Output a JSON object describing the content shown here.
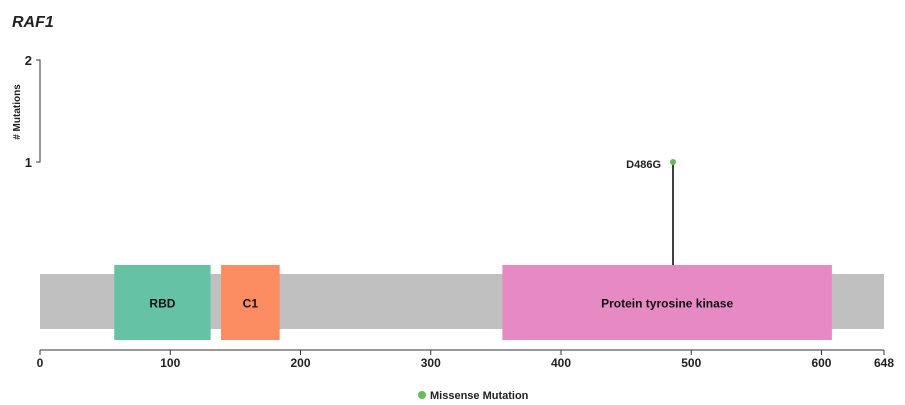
{
  "chart_data": {
    "type": "lollipop",
    "title": "RAF1",
    "ylabel": "# Mutations",
    "y_ticks": [
      1,
      2
    ],
    "ylim": [
      0,
      2
    ],
    "x_range": [
      0,
      648
    ],
    "x_ticks": [
      0,
      100,
      200,
      300,
      400,
      500,
      600,
      648
    ],
    "protein_length": 648,
    "domains": [
      {
        "name": "RBD",
        "start": 57,
        "end": 131,
        "color": "#66c2a5"
      },
      {
        "name": "C1",
        "start": 139,
        "end": 184,
        "color": "#fc8d62"
      },
      {
        "name": "Protein tyrosine kinase",
        "start": 355,
        "end": 608,
        "color": "#e78ac3"
      }
    ],
    "mutations": [
      {
        "label": "D486G",
        "position": 486,
        "count": 1,
        "type": "Missense Mutation",
        "color": "#66bb55"
      }
    ],
    "legend": [
      {
        "label": "Missense Mutation",
        "color": "#66bb55"
      }
    ],
    "legend_position": "bottom-center",
    "backbone_color": "#c0c0c0"
  }
}
